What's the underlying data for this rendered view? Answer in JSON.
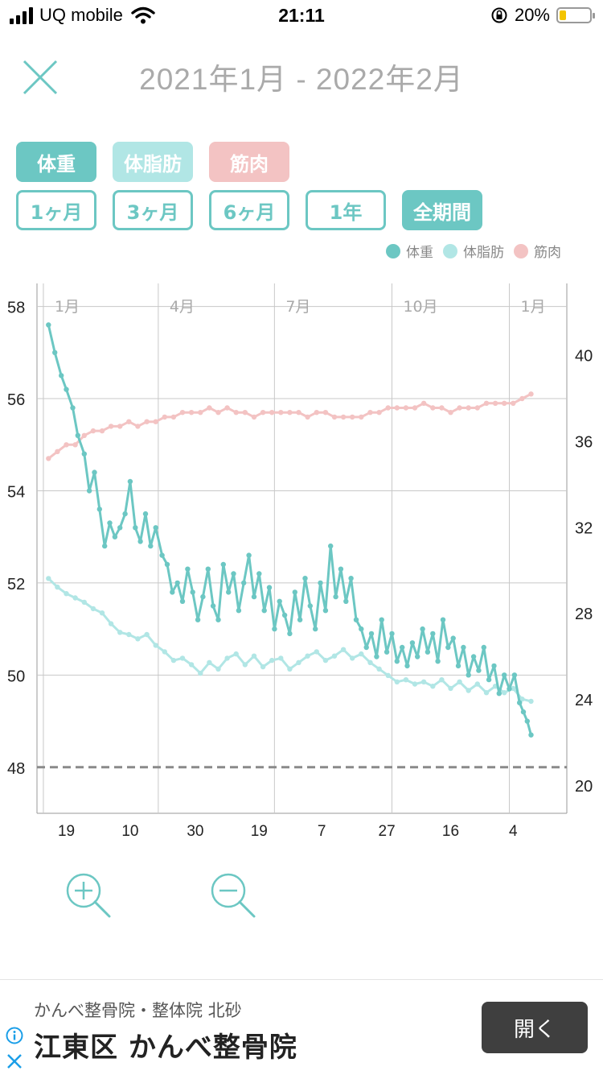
{
  "status_bar": {
    "carrier": "UQ mobile",
    "time": "21:11",
    "battery_percent": "20%",
    "battery_level": 0.2
  },
  "header": {
    "title": "2021年1月 - 2022年2月"
  },
  "metric_tabs": [
    {
      "label": "体重",
      "color": "#6cc7c3"
    },
    {
      "label": "体脂肪",
      "color": "#b1e6e5"
    },
    {
      "label": "筋肉",
      "color": "#f3c3c3"
    }
  ],
  "period_tabs": [
    {
      "label": "1ヶ月",
      "selected": false
    },
    {
      "label": "3ヶ月",
      "selected": false
    },
    {
      "label": "6ヶ月",
      "selected": false
    },
    {
      "label": "1年",
      "selected": false
    },
    {
      "label": "全期間",
      "selected": true
    }
  ],
  "legend": [
    {
      "label": "体重",
      "color": "#6cc7c3"
    },
    {
      "label": "体脂肪",
      "color": "#b1e6e5"
    },
    {
      "label": "筋肉",
      "color": "#f3c3c3"
    }
  ],
  "chart_data": {
    "type": "line",
    "x_range": [
      "2020-12-27",
      "2022-02-15"
    ],
    "y_left": {
      "range": [
        47,
        58.5
      ],
      "ticks": [
        48,
        50,
        52,
        54,
        56,
        58
      ]
    },
    "y_right": {
      "range": [
        18.7,
        43.3
      ],
      "ticks": [
        20,
        24,
        28,
        32,
        36,
        40
      ]
    },
    "month_labels": [
      {
        "date": "2021-01-01",
        "label": "1月"
      },
      {
        "date": "2021-04-01",
        "label": "4月"
      },
      {
        "date": "2021-07-01",
        "label": "7月"
      },
      {
        "date": "2021-10-01",
        "label": "10月"
      },
      {
        "date": "2022-01-01",
        "label": "1月"
      }
    ],
    "day_ticks": [
      {
        "date": "2021-01-19",
        "label": "19"
      },
      {
        "date": "2021-03-10",
        "label": "10"
      },
      {
        "date": "2021-04-30",
        "label": "30"
      },
      {
        "date": "2021-06-19",
        "label": "19"
      },
      {
        "date": "2021-08-07",
        "label": "7"
      },
      {
        "date": "2021-09-27",
        "label": "27"
      },
      {
        "date": "2021-11-16",
        "label": "16"
      },
      {
        "date": "2022-01-04",
        "label": "4"
      }
    ],
    "target_weight": 48,
    "series": [
      {
        "name": "体重",
        "axis": "left",
        "color": "#6cc7c3",
        "points": [
          [
            "2021-01-05",
            57.6
          ],
          [
            "2021-01-10",
            57.0
          ],
          [
            "2021-01-15",
            56.5
          ],
          [
            "2021-01-19",
            56.2
          ],
          [
            "2021-01-24",
            55.8
          ],
          [
            "2021-01-28",
            55.2
          ],
          [
            "2021-02-02",
            54.8
          ],
          [
            "2021-02-06",
            54.0
          ],
          [
            "2021-02-10",
            54.4
          ],
          [
            "2021-02-14",
            53.6
          ],
          [
            "2021-02-18",
            52.8
          ],
          [
            "2021-02-22",
            53.3
          ],
          [
            "2021-02-26",
            53.0
          ],
          [
            "2021-03-02",
            53.2
          ],
          [
            "2021-03-06",
            53.5
          ],
          [
            "2021-03-10",
            54.2
          ],
          [
            "2021-03-14",
            53.2
          ],
          [
            "2021-03-18",
            52.9
          ],
          [
            "2021-03-22",
            53.5
          ],
          [
            "2021-03-26",
            52.8
          ],
          [
            "2021-03-30",
            53.2
          ],
          [
            "2021-04-04",
            52.6
          ],
          [
            "2021-04-08",
            52.4
          ],
          [
            "2021-04-12",
            51.8
          ],
          [
            "2021-04-16",
            52.0
          ],
          [
            "2021-04-20",
            51.6
          ],
          [
            "2021-04-24",
            52.3
          ],
          [
            "2021-04-28",
            51.8
          ],
          [
            "2021-05-02",
            51.2
          ],
          [
            "2021-05-06",
            51.7
          ],
          [
            "2021-05-10",
            52.3
          ],
          [
            "2021-05-14",
            51.5
          ],
          [
            "2021-05-18",
            51.2
          ],
          [
            "2021-05-22",
            52.4
          ],
          [
            "2021-05-26",
            51.8
          ],
          [
            "2021-05-30",
            52.2
          ],
          [
            "2021-06-03",
            51.4
          ],
          [
            "2021-06-07",
            52.0
          ],
          [
            "2021-06-11",
            52.6
          ],
          [
            "2021-06-15",
            51.7
          ],
          [
            "2021-06-19",
            52.2
          ],
          [
            "2021-06-23",
            51.4
          ],
          [
            "2021-06-27",
            51.9
          ],
          [
            "2021-07-01",
            51.0
          ],
          [
            "2021-07-05",
            51.6
          ],
          [
            "2021-07-09",
            51.3
          ],
          [
            "2021-07-13",
            50.9
          ],
          [
            "2021-07-17",
            51.8
          ],
          [
            "2021-07-21",
            51.2
          ],
          [
            "2021-07-25",
            52.1
          ],
          [
            "2021-07-29",
            51.5
          ],
          [
            "2021-08-02",
            51.0
          ],
          [
            "2021-08-06",
            52.0
          ],
          [
            "2021-08-10",
            51.4
          ],
          [
            "2021-08-14",
            52.8
          ],
          [
            "2021-08-18",
            51.7
          ],
          [
            "2021-08-22",
            52.3
          ],
          [
            "2021-08-26",
            51.6
          ],
          [
            "2021-08-30",
            52.1
          ],
          [
            "2021-09-03",
            51.2
          ],
          [
            "2021-09-07",
            51.0
          ],
          [
            "2021-09-11",
            50.6
          ],
          [
            "2021-09-15",
            50.9
          ],
          [
            "2021-09-19",
            50.4
          ],
          [
            "2021-09-23",
            51.2
          ],
          [
            "2021-09-27",
            50.5
          ],
          [
            "2021-10-01",
            50.9
          ],
          [
            "2021-10-05",
            50.3
          ],
          [
            "2021-10-09",
            50.6
          ],
          [
            "2021-10-13",
            50.2
          ],
          [
            "2021-10-17",
            50.7
          ],
          [
            "2021-10-21",
            50.4
          ],
          [
            "2021-10-25",
            51.0
          ],
          [
            "2021-10-29",
            50.5
          ],
          [
            "2021-11-02",
            50.9
          ],
          [
            "2021-11-06",
            50.3
          ],
          [
            "2021-11-10",
            51.2
          ],
          [
            "2021-11-14",
            50.6
          ],
          [
            "2021-11-18",
            50.8
          ],
          [
            "2021-11-22",
            50.2
          ],
          [
            "2021-11-26",
            50.6
          ],
          [
            "2021-11-30",
            50.0
          ],
          [
            "2021-12-04",
            50.4
          ],
          [
            "2021-12-08",
            50.1
          ],
          [
            "2021-12-12",
            50.6
          ],
          [
            "2021-12-16",
            49.9
          ],
          [
            "2021-12-20",
            50.2
          ],
          [
            "2021-12-24",
            49.6
          ],
          [
            "2021-12-28",
            50.0
          ],
          [
            "2022-01-01",
            49.7
          ],
          [
            "2022-01-05",
            50.0
          ],
          [
            "2022-01-09",
            49.4
          ],
          [
            "2022-01-12",
            49.2
          ],
          [
            "2022-01-15",
            49.0
          ],
          [
            "2022-01-18",
            48.7
          ]
        ]
      },
      {
        "name": "体脂肪",
        "axis": "right",
        "color": "#b1e6e5",
        "points": [
          [
            "2021-01-05",
            29.6
          ],
          [
            "2021-01-12",
            29.2
          ],
          [
            "2021-01-19",
            28.9
          ],
          [
            "2021-01-26",
            28.7
          ],
          [
            "2021-02-02",
            28.5
          ],
          [
            "2021-02-09",
            28.2
          ],
          [
            "2021-02-16",
            28.0
          ],
          [
            "2021-02-23",
            27.5
          ],
          [
            "2021-03-02",
            27.1
          ],
          [
            "2021-03-09",
            27.0
          ],
          [
            "2021-03-16",
            26.8
          ],
          [
            "2021-03-23",
            27.0
          ],
          [
            "2021-03-30",
            26.5
          ],
          [
            "2021-04-06",
            26.2
          ],
          [
            "2021-04-13",
            25.8
          ],
          [
            "2021-04-20",
            25.9
          ],
          [
            "2021-04-27",
            25.6
          ],
          [
            "2021-05-04",
            25.2
          ],
          [
            "2021-05-11",
            25.7
          ],
          [
            "2021-05-18",
            25.4
          ],
          [
            "2021-05-25",
            25.9
          ],
          [
            "2021-06-01",
            26.1
          ],
          [
            "2021-06-08",
            25.6
          ],
          [
            "2021-06-15",
            26.0
          ],
          [
            "2021-06-22",
            25.5
          ],
          [
            "2021-06-29",
            25.8
          ],
          [
            "2021-07-06",
            25.9
          ],
          [
            "2021-07-13",
            25.4
          ],
          [
            "2021-07-20",
            25.7
          ],
          [
            "2021-07-27",
            26.0
          ],
          [
            "2021-08-03",
            26.2
          ],
          [
            "2021-08-10",
            25.8
          ],
          [
            "2021-08-17",
            26.0
          ],
          [
            "2021-08-24",
            26.3
          ],
          [
            "2021-08-31",
            25.9
          ],
          [
            "2021-09-07",
            26.1
          ],
          [
            "2021-09-14",
            25.7
          ],
          [
            "2021-09-21",
            25.4
          ],
          [
            "2021-09-28",
            25.1
          ],
          [
            "2021-10-05",
            24.8
          ],
          [
            "2021-10-12",
            24.9
          ],
          [
            "2021-10-19",
            24.7
          ],
          [
            "2021-10-26",
            24.8
          ],
          [
            "2021-11-02",
            24.6
          ],
          [
            "2021-11-09",
            24.9
          ],
          [
            "2021-11-16",
            24.5
          ],
          [
            "2021-11-23",
            24.8
          ],
          [
            "2021-11-30",
            24.4
          ],
          [
            "2021-12-07",
            24.7
          ],
          [
            "2021-12-14",
            24.3
          ],
          [
            "2021-12-21",
            24.6
          ],
          [
            "2021-12-28",
            24.3
          ],
          [
            "2022-01-04",
            24.5
          ],
          [
            "2022-01-11",
            24.0
          ],
          [
            "2022-01-18",
            23.9
          ]
        ]
      },
      {
        "name": "筋肉",
        "axis": "left",
        "color": "#f3c3c3",
        "points": [
          [
            "2021-01-05",
            54.7
          ],
          [
            "2021-01-12",
            54.85
          ],
          [
            "2021-01-19",
            55.0
          ],
          [
            "2021-01-26",
            55.0
          ],
          [
            "2021-02-02",
            55.2
          ],
          [
            "2021-02-09",
            55.3
          ],
          [
            "2021-02-16",
            55.3
          ],
          [
            "2021-02-23",
            55.4
          ],
          [
            "2021-03-02",
            55.4
          ],
          [
            "2021-03-09",
            55.5
          ],
          [
            "2021-03-16",
            55.4
          ],
          [
            "2021-03-23",
            55.5
          ],
          [
            "2021-03-30",
            55.5
          ],
          [
            "2021-04-06",
            55.6
          ],
          [
            "2021-04-13",
            55.6
          ],
          [
            "2021-04-20",
            55.7
          ],
          [
            "2021-04-27",
            55.7
          ],
          [
            "2021-05-04",
            55.7
          ],
          [
            "2021-05-11",
            55.8
          ],
          [
            "2021-05-18",
            55.7
          ],
          [
            "2021-05-25",
            55.8
          ],
          [
            "2021-06-01",
            55.7
          ],
          [
            "2021-06-08",
            55.7
          ],
          [
            "2021-06-15",
            55.6
          ],
          [
            "2021-06-22",
            55.7
          ],
          [
            "2021-06-29",
            55.7
          ],
          [
            "2021-07-06",
            55.7
          ],
          [
            "2021-07-13",
            55.7
          ],
          [
            "2021-07-20",
            55.7
          ],
          [
            "2021-07-27",
            55.6
          ],
          [
            "2021-08-03",
            55.7
          ],
          [
            "2021-08-10",
            55.7
          ],
          [
            "2021-08-17",
            55.6
          ],
          [
            "2021-08-24",
            55.6
          ],
          [
            "2021-08-31",
            55.6
          ],
          [
            "2021-09-07",
            55.6
          ],
          [
            "2021-09-14",
            55.7
          ],
          [
            "2021-09-21",
            55.7
          ],
          [
            "2021-09-28",
            55.8
          ],
          [
            "2021-10-05",
            55.8
          ],
          [
            "2021-10-12",
            55.8
          ],
          [
            "2021-10-19",
            55.8
          ],
          [
            "2021-10-26",
            55.9
          ],
          [
            "2021-11-02",
            55.8
          ],
          [
            "2021-11-09",
            55.8
          ],
          [
            "2021-11-16",
            55.7
          ],
          [
            "2021-11-23",
            55.8
          ],
          [
            "2021-11-30",
            55.8
          ],
          [
            "2021-12-07",
            55.8
          ],
          [
            "2021-12-14",
            55.9
          ],
          [
            "2021-12-21",
            55.9
          ],
          [
            "2021-12-28",
            55.9
          ],
          [
            "2022-01-04",
            55.9
          ],
          [
            "2022-01-11",
            56.0
          ],
          [
            "2022-01-18",
            56.1
          ]
        ]
      }
    ]
  },
  "zoom_controls": {
    "zoom_in_icon": "zoom-in-icon",
    "zoom_out_icon": "zoom-out-icon"
  },
  "ad": {
    "advertiser": "かんべ整骨院・整体院 北砂",
    "headline": "江東区 かんべ整骨院",
    "button_label": "開く"
  }
}
